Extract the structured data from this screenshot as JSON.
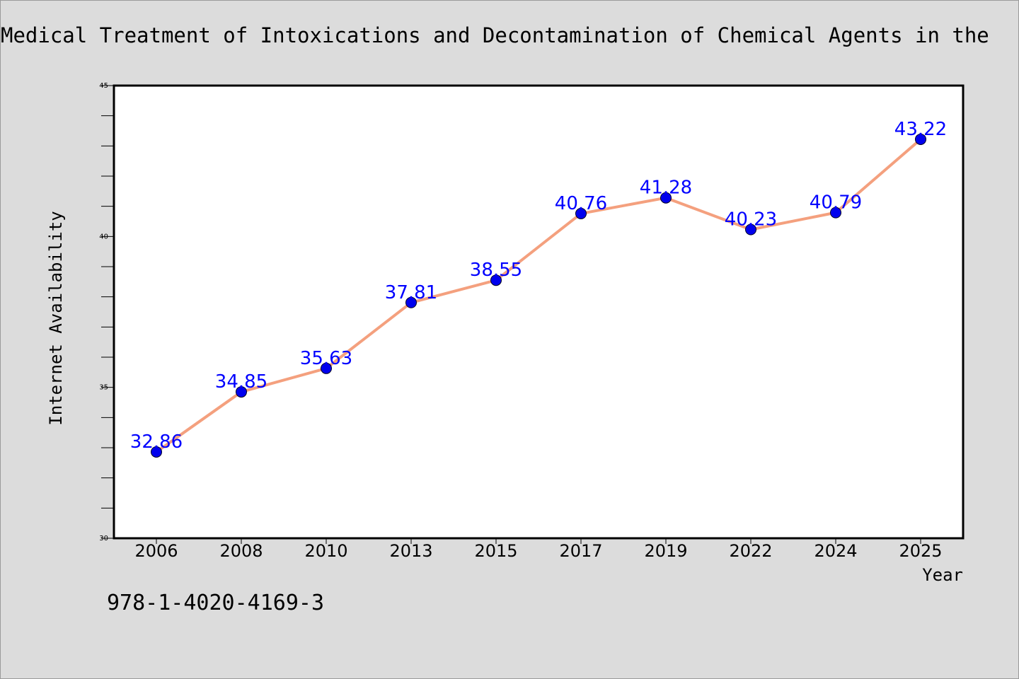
{
  "chart_data": {
    "type": "line",
    "title": "Medical Treatment of Intoxications and Decontamination of Chemical Agents in the",
    "xlabel": "Year",
    "ylabel": "Internet Availability",
    "categories": [
      "2006",
      "2008",
      "2010",
      "2013",
      "2015",
      "2017",
      "2019",
      "2022",
      "2024",
      "2025"
    ],
    "series": [
      {
        "values": [
          32.86,
          34.85,
          35.63,
          37.81,
          38.55,
          40.76,
          41.28,
          40.23,
          40.79,
          43.22
        ],
        "data_labels": [
          "32.86",
          "34.85",
          "35.63",
          "37.81",
          "38.55",
          "40.76",
          "41.28",
          "40.23",
          "40.79",
          "43.22"
        ]
      }
    ],
    "ylim": [
      30,
      45
    ],
    "yticks": [
      "30",
      "35",
      "40",
      "45"
    ],
    "y_minor_step": 1,
    "grid": false,
    "legend": "none",
    "colors": {
      "line": "#f4a07e",
      "marker": "#0000ee",
      "data_label": "#0000ff",
      "background": "#dcdcdc",
      "plot_background": "#ffffff",
      "axes": "#000000"
    }
  },
  "footer_text": "978-1-4020-4169-3"
}
